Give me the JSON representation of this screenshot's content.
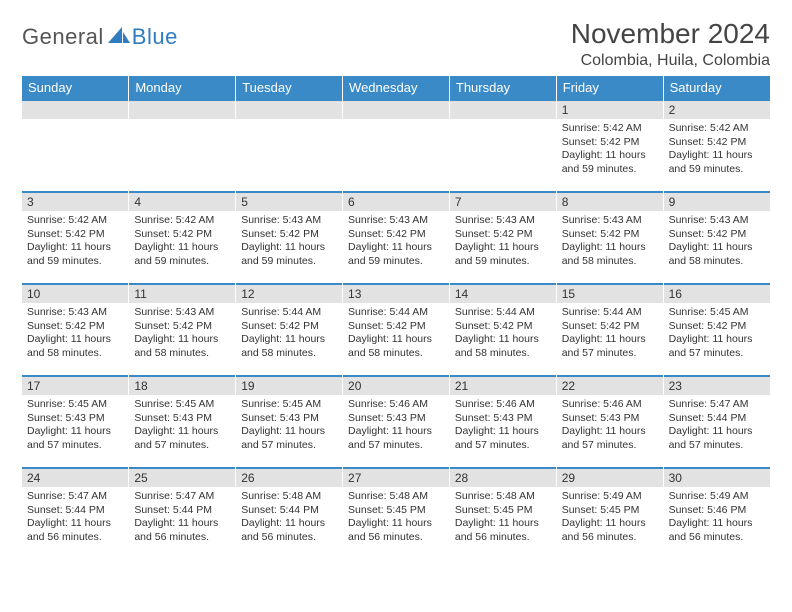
{
  "brand": {
    "part1": "General",
    "part2": "Blue",
    "accent": "#2f7dc0"
  },
  "header": {
    "title": "November 2024",
    "location": "Colombia, Huila, Colombia",
    "title_fontsize": 28,
    "location_fontsize": 16,
    "text_color": "#444444"
  },
  "style": {
    "header_bg": "#3a8ac7",
    "header_text": "#ffffff",
    "daynum_bg": "#e2e2e2",
    "row_border": "#3a8ac7",
    "body_text": "#333333",
    "cell_font_size": 10.5
  },
  "weekdays": [
    "Sunday",
    "Monday",
    "Tuesday",
    "Wednesday",
    "Thursday",
    "Friday",
    "Saturday"
  ],
  "weeks": [
    [
      {
        "n": "",
        "sunrise": "",
        "sunset": "",
        "daylight": ""
      },
      {
        "n": "",
        "sunrise": "",
        "sunset": "",
        "daylight": ""
      },
      {
        "n": "",
        "sunrise": "",
        "sunset": "",
        "daylight": ""
      },
      {
        "n": "",
        "sunrise": "",
        "sunset": "",
        "daylight": ""
      },
      {
        "n": "",
        "sunrise": "",
        "sunset": "",
        "daylight": ""
      },
      {
        "n": "1",
        "sunrise": "Sunrise: 5:42 AM",
        "sunset": "Sunset: 5:42 PM",
        "daylight": "Daylight: 11 hours and 59 minutes."
      },
      {
        "n": "2",
        "sunrise": "Sunrise: 5:42 AM",
        "sunset": "Sunset: 5:42 PM",
        "daylight": "Daylight: 11 hours and 59 minutes."
      }
    ],
    [
      {
        "n": "3",
        "sunrise": "Sunrise: 5:42 AM",
        "sunset": "Sunset: 5:42 PM",
        "daylight": "Daylight: 11 hours and 59 minutes."
      },
      {
        "n": "4",
        "sunrise": "Sunrise: 5:42 AM",
        "sunset": "Sunset: 5:42 PM",
        "daylight": "Daylight: 11 hours and 59 minutes."
      },
      {
        "n": "5",
        "sunrise": "Sunrise: 5:43 AM",
        "sunset": "Sunset: 5:42 PM",
        "daylight": "Daylight: 11 hours and 59 minutes."
      },
      {
        "n": "6",
        "sunrise": "Sunrise: 5:43 AM",
        "sunset": "Sunset: 5:42 PM",
        "daylight": "Daylight: 11 hours and 59 minutes."
      },
      {
        "n": "7",
        "sunrise": "Sunrise: 5:43 AM",
        "sunset": "Sunset: 5:42 PM",
        "daylight": "Daylight: 11 hours and 59 minutes."
      },
      {
        "n": "8",
        "sunrise": "Sunrise: 5:43 AM",
        "sunset": "Sunset: 5:42 PM",
        "daylight": "Daylight: 11 hours and 58 minutes."
      },
      {
        "n": "9",
        "sunrise": "Sunrise: 5:43 AM",
        "sunset": "Sunset: 5:42 PM",
        "daylight": "Daylight: 11 hours and 58 minutes."
      }
    ],
    [
      {
        "n": "10",
        "sunrise": "Sunrise: 5:43 AM",
        "sunset": "Sunset: 5:42 PM",
        "daylight": "Daylight: 11 hours and 58 minutes."
      },
      {
        "n": "11",
        "sunrise": "Sunrise: 5:43 AM",
        "sunset": "Sunset: 5:42 PM",
        "daylight": "Daylight: 11 hours and 58 minutes."
      },
      {
        "n": "12",
        "sunrise": "Sunrise: 5:44 AM",
        "sunset": "Sunset: 5:42 PM",
        "daylight": "Daylight: 11 hours and 58 minutes."
      },
      {
        "n": "13",
        "sunrise": "Sunrise: 5:44 AM",
        "sunset": "Sunset: 5:42 PM",
        "daylight": "Daylight: 11 hours and 58 minutes."
      },
      {
        "n": "14",
        "sunrise": "Sunrise: 5:44 AM",
        "sunset": "Sunset: 5:42 PM",
        "daylight": "Daylight: 11 hours and 58 minutes."
      },
      {
        "n": "15",
        "sunrise": "Sunrise: 5:44 AM",
        "sunset": "Sunset: 5:42 PM",
        "daylight": "Daylight: 11 hours and 57 minutes."
      },
      {
        "n": "16",
        "sunrise": "Sunrise: 5:45 AM",
        "sunset": "Sunset: 5:42 PM",
        "daylight": "Daylight: 11 hours and 57 minutes."
      }
    ],
    [
      {
        "n": "17",
        "sunrise": "Sunrise: 5:45 AM",
        "sunset": "Sunset: 5:43 PM",
        "daylight": "Daylight: 11 hours and 57 minutes."
      },
      {
        "n": "18",
        "sunrise": "Sunrise: 5:45 AM",
        "sunset": "Sunset: 5:43 PM",
        "daylight": "Daylight: 11 hours and 57 minutes."
      },
      {
        "n": "19",
        "sunrise": "Sunrise: 5:45 AM",
        "sunset": "Sunset: 5:43 PM",
        "daylight": "Daylight: 11 hours and 57 minutes."
      },
      {
        "n": "20",
        "sunrise": "Sunrise: 5:46 AM",
        "sunset": "Sunset: 5:43 PM",
        "daylight": "Daylight: 11 hours and 57 minutes."
      },
      {
        "n": "21",
        "sunrise": "Sunrise: 5:46 AM",
        "sunset": "Sunset: 5:43 PM",
        "daylight": "Daylight: 11 hours and 57 minutes."
      },
      {
        "n": "22",
        "sunrise": "Sunrise: 5:46 AM",
        "sunset": "Sunset: 5:43 PM",
        "daylight": "Daylight: 11 hours and 57 minutes."
      },
      {
        "n": "23",
        "sunrise": "Sunrise: 5:47 AM",
        "sunset": "Sunset: 5:44 PM",
        "daylight": "Daylight: 11 hours and 57 minutes."
      }
    ],
    [
      {
        "n": "24",
        "sunrise": "Sunrise: 5:47 AM",
        "sunset": "Sunset: 5:44 PM",
        "daylight": "Daylight: 11 hours and 56 minutes."
      },
      {
        "n": "25",
        "sunrise": "Sunrise: 5:47 AM",
        "sunset": "Sunset: 5:44 PM",
        "daylight": "Daylight: 11 hours and 56 minutes."
      },
      {
        "n": "26",
        "sunrise": "Sunrise: 5:48 AM",
        "sunset": "Sunset: 5:44 PM",
        "daylight": "Daylight: 11 hours and 56 minutes."
      },
      {
        "n": "27",
        "sunrise": "Sunrise: 5:48 AM",
        "sunset": "Sunset: 5:45 PM",
        "daylight": "Daylight: 11 hours and 56 minutes."
      },
      {
        "n": "28",
        "sunrise": "Sunrise: 5:48 AM",
        "sunset": "Sunset: 5:45 PM",
        "daylight": "Daylight: 11 hours and 56 minutes."
      },
      {
        "n": "29",
        "sunrise": "Sunrise: 5:49 AM",
        "sunset": "Sunset: 5:45 PM",
        "daylight": "Daylight: 11 hours and 56 minutes."
      },
      {
        "n": "30",
        "sunrise": "Sunrise: 5:49 AM",
        "sunset": "Sunset: 5:46 PM",
        "daylight": "Daylight: 11 hours and 56 minutes."
      }
    ]
  ]
}
